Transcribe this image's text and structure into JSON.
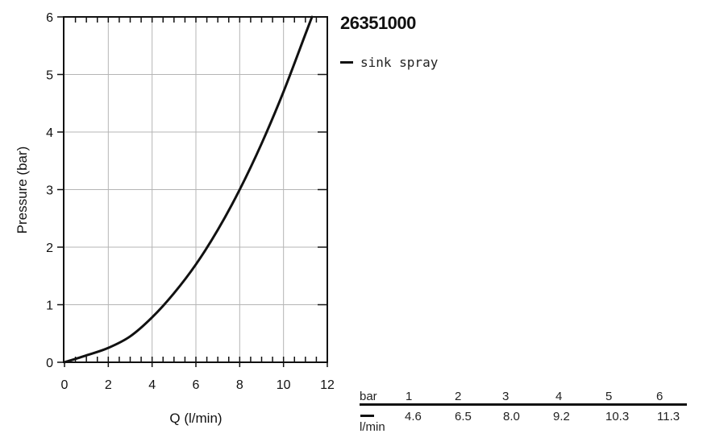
{
  "chart_data": {
    "type": "line",
    "title": "26351000",
    "xlabel": "Q (l/min)",
    "ylabel": "Pressure (bar)",
    "xlim": [
      0,
      12
    ],
    "ylim": [
      0,
      6
    ],
    "x_ticks": [
      "0",
      "2",
      "4",
      "6",
      "8",
      "10",
      "12"
    ],
    "y_ticks": [
      "0",
      "1",
      "2",
      "3",
      "4",
      "5",
      "6"
    ],
    "grid": true,
    "legend_position": "top-right",
    "series": [
      {
        "name": "sink spray",
        "color": "#111111",
        "points": [
          [
            0,
            0
          ],
          [
            1,
            0.12
          ],
          [
            2,
            0.25
          ],
          [
            3,
            0.45
          ],
          [
            4,
            0.78
          ],
          [
            5,
            1.2
          ],
          [
            6,
            1.7
          ],
          [
            7,
            2.3
          ],
          [
            8,
            3.0
          ],
          [
            9,
            3.8
          ],
          [
            10,
            4.7
          ],
          [
            11,
            5.7
          ],
          [
            11.3,
            6.0
          ]
        ]
      }
    ]
  },
  "flow_table": {
    "pressure_header": "bar",
    "flow_header": "l/min",
    "pressures": [
      "1",
      "2",
      "3",
      "4",
      "5",
      "6"
    ],
    "flows": [
      "4.6",
      "6.5",
      "8.0",
      "9.2",
      "10.3",
      "11.3"
    ]
  }
}
